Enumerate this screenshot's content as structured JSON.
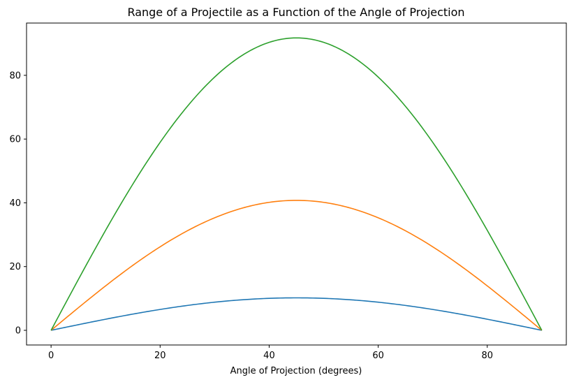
{
  "chart_data": {
    "type": "line",
    "title": "Range of a Projectile as a Function of the Angle of Projection",
    "xlabel": "Angle of Projection (degrees)",
    "ylabel": "",
    "xlim": [
      -4.5,
      94.5
    ],
    "ylim": [
      -4.6,
      96.4
    ],
    "xticks": [
      0,
      20,
      40,
      60,
      80
    ],
    "yticks": [
      0,
      20,
      40,
      60,
      80
    ],
    "grid": false,
    "series": [
      {
        "color": "#1f77b4",
        "peak": 10.19,
        "x": [
          0,
          5,
          10,
          15,
          20,
          25,
          30,
          35,
          40,
          45,
          50,
          55,
          60,
          65,
          70,
          75,
          80,
          85,
          90
        ],
        "values": [
          0,
          1.77,
          3.49,
          5.1,
          6.55,
          7.81,
          8.83,
          9.58,
          10.04,
          10.19,
          10.04,
          9.58,
          8.83,
          7.81,
          6.55,
          5.1,
          3.49,
          1.77,
          0
        ]
      },
      {
        "color": "#ff7f0e",
        "peak": 40.77,
        "x": [
          0,
          5,
          10,
          15,
          20,
          25,
          30,
          35,
          40,
          45,
          50,
          55,
          60,
          65,
          70,
          75,
          80,
          85,
          90
        ],
        "values": [
          0,
          7.08,
          13.94,
          20.39,
          26.21,
          31.23,
          35.31,
          38.31,
          40.15,
          40.77,
          40.15,
          38.31,
          35.31,
          31.23,
          26.21,
          20.39,
          13.94,
          7.08,
          0
        ]
      },
      {
        "color": "#2ca02c",
        "peak": 91.74,
        "x": [
          0,
          5,
          10,
          15,
          20,
          25,
          30,
          35,
          40,
          45,
          50,
          55,
          60,
          65,
          70,
          75,
          80,
          85,
          90
        ],
        "values": [
          0,
          15.93,
          31.38,
          45.87,
          58.97,
          70.28,
          79.45,
          86.21,
          90.35,
          91.74,
          90.35,
          86.21,
          79.45,
          70.28,
          58.97,
          45.87,
          31.38,
          15.93,
          0
        ]
      }
    ]
  }
}
